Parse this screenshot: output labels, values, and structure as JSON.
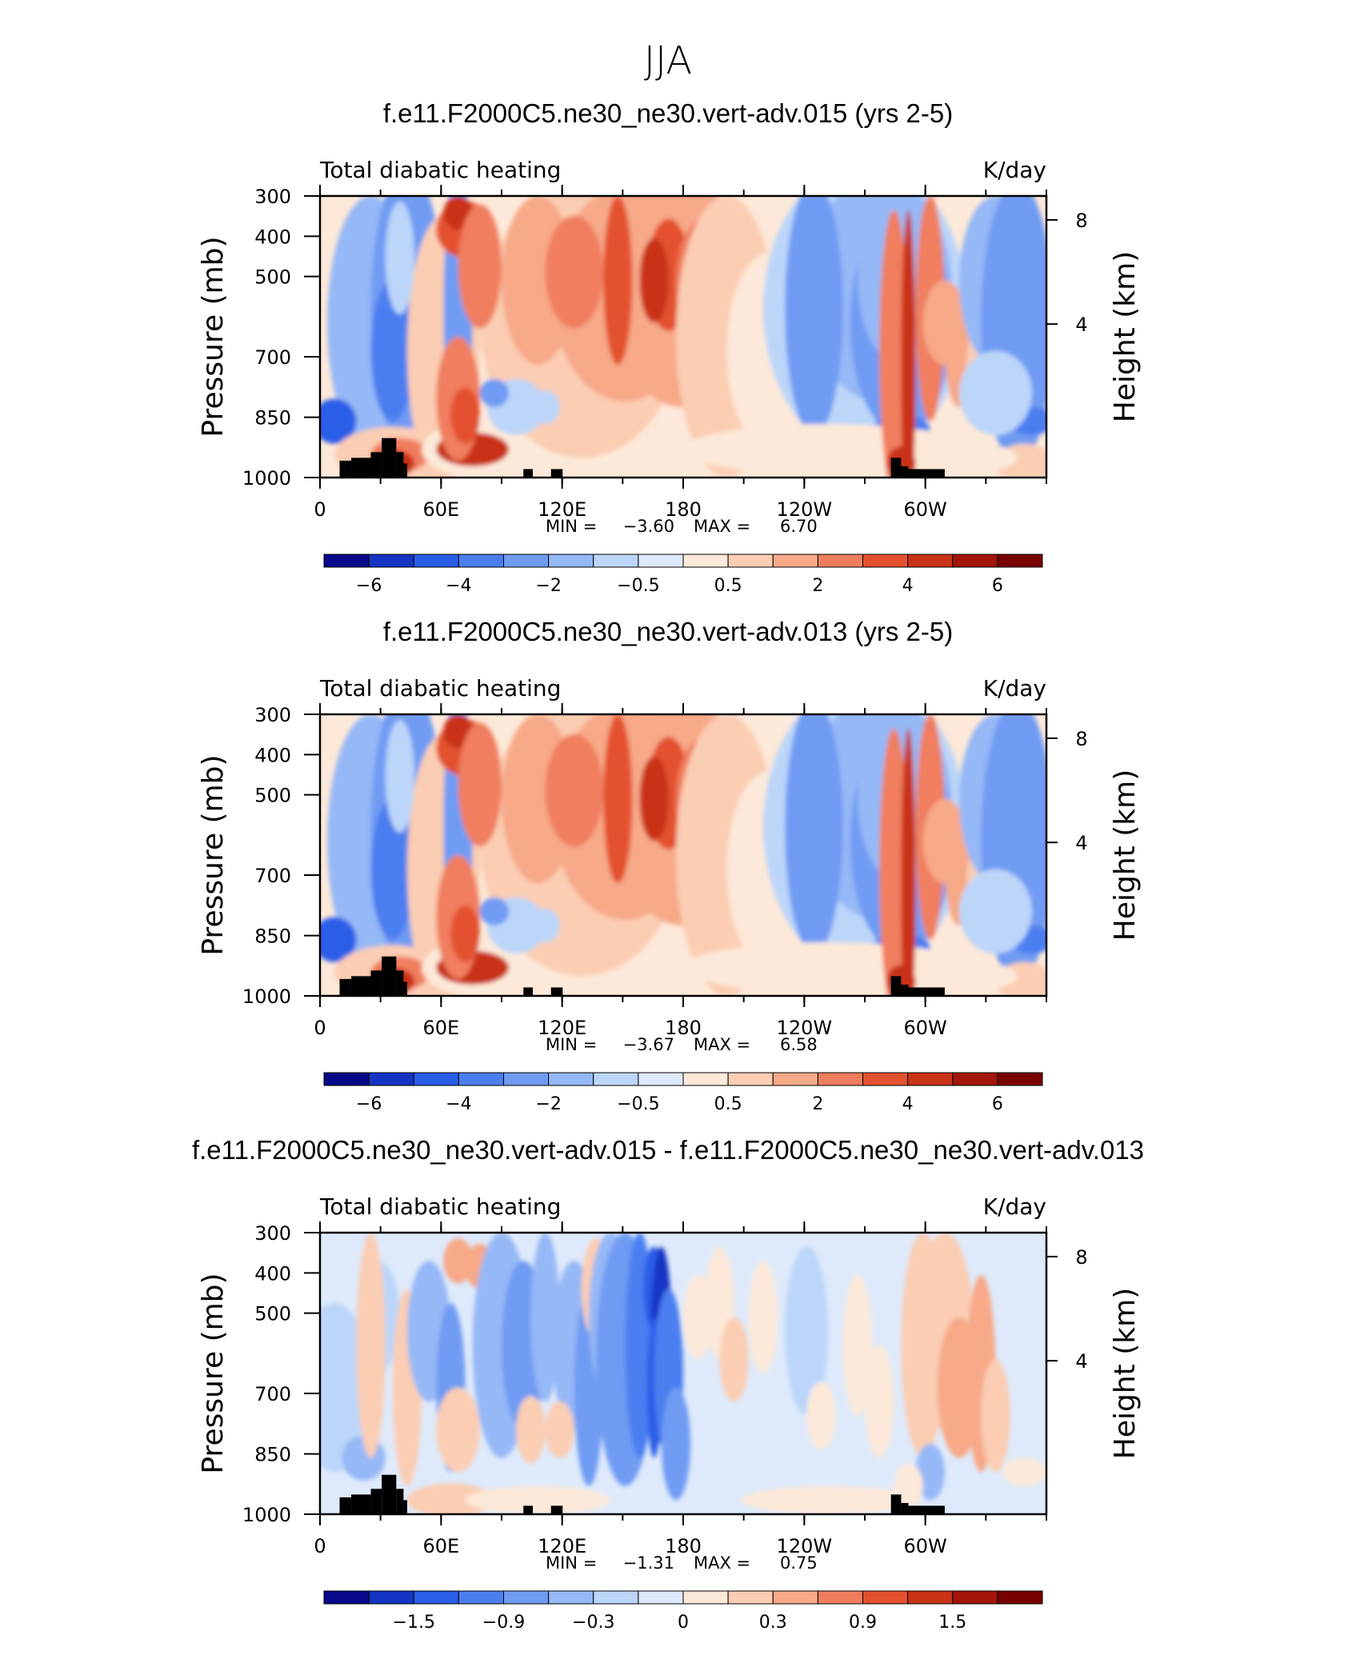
{
  "figure_title": "JJA",
  "colors": {
    "land_mask": "#000000",
    "palette": [
      "#08088a",
      "#1434c4",
      "#2a5de8",
      "#4b7ef0",
      "#6f9bf3",
      "#95b8f6",
      "#bcd6f9",
      "#deeafb",
      "#fde9d9",
      "#fbcdb3",
      "#f7a988",
      "#f07e5e",
      "#e3512f",
      "#c93316",
      "#a31409",
      "#780000"
    ]
  },
  "chart_data": [
    {
      "type": "heatmap",
      "id": "panel-1",
      "title": "f.e11.F2000C5.ne30_ne30.vert-adv.015 (yrs 2-5)",
      "left_label": "Total diabatic heating",
      "right_label": "K/day",
      "ylabel": "Pressure (mb)",
      "ylabel_right": "Height (km)",
      "x_ticks": [
        "0",
        "60E",
        "120E",
        "180",
        "120W",
        "60W"
      ],
      "y_ticks": [
        "300",
        "400",
        "500",
        "700",
        "850",
        "1000"
      ],
      "y_ticks_right": [
        "8",
        "4"
      ],
      "min_label": "MIN =",
      "min_value": "−3.60",
      "max_label": "MAX =",
      "max_value": "6.70",
      "colorbar_labels": [
        "−6",
        "−4",
        "−2",
        "−0.5",
        "0.5",
        "2",
        "4",
        "6"
      ],
      "field": "full"
    },
    {
      "type": "heatmap",
      "id": "panel-2",
      "title": "f.e11.F2000C5.ne30_ne30.vert-adv.013 (yrs 2-5)",
      "left_label": "Total diabatic heating",
      "right_label": "K/day",
      "ylabel": "Pressure (mb)",
      "ylabel_right": "Height (km)",
      "x_ticks": [
        "0",
        "60E",
        "120E",
        "180",
        "120W",
        "60W"
      ],
      "y_ticks": [
        "300",
        "400",
        "500",
        "700",
        "850",
        "1000"
      ],
      "y_ticks_right": [
        "8",
        "4"
      ],
      "min_label": "MIN =",
      "min_value": "−3.67",
      "max_label": "MAX =",
      "max_value": "6.58",
      "colorbar_labels": [
        "−6",
        "−4",
        "−2",
        "−0.5",
        "0.5",
        "2",
        "4",
        "6"
      ],
      "field": "full"
    },
    {
      "type": "heatmap",
      "id": "panel-3",
      "title": "f.e11.F2000C5.ne30_ne30.vert-adv.015 - f.e11.F2000C5.ne30_ne30.vert-adv.013",
      "left_label": "Total diabatic heating",
      "right_label": "K/day",
      "ylabel": "Pressure (mb)",
      "ylabel_right": "Height (km)",
      "x_ticks": [
        "0",
        "60E",
        "120E",
        "180",
        "120W",
        "60W"
      ],
      "y_ticks": [
        "300",
        "400",
        "500",
        "700",
        "850",
        "1000"
      ],
      "y_ticks_right": [
        "8",
        "4"
      ],
      "min_label": "MIN =",
      "min_value": "−1.31",
      "max_label": "MAX =",
      "max_value": "0.75",
      "colorbar_labels": [
        "−1.5",
        "−0.9",
        "−0.3",
        "0",
        "0.3",
        "0.9",
        "1.5"
      ],
      "field": "diff"
    }
  ]
}
